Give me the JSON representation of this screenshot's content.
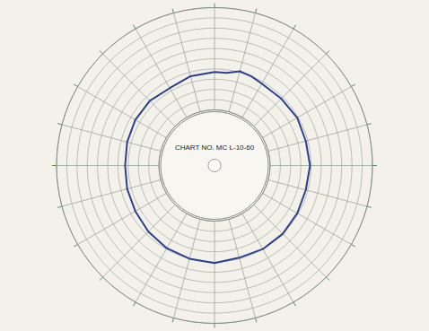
{
  "chart_data": {
    "type": "polar",
    "annotations": [
      "CHART NO. MC L-10-60"
    ],
    "x": [
      0,
      0.5,
      1,
      1.5,
      2,
      3,
      4,
      5,
      6,
      7,
      8,
      9,
      10,
      11,
      12,
      13,
      14,
      15,
      16,
      17,
      18,
      19,
      20,
      21,
      22,
      23,
      24
    ],
    "values": [
      3.7,
      3.7,
      4.1,
      4.0,
      3.8,
      3.8,
      3.9,
      3.8,
      3.9,
      3.8,
      3.9,
      4.0,
      4.0,
      3.9,
      4.1,
      4.0,
      3.9,
      3.7,
      3.5,
      3.4,
      3.3,
      3.4,
      3.5,
      3.5,
      3.3,
      3.6,
      3.7
    ],
    "color": "#2b3f92",
    "xlim": [
      0,
      24
    ],
    "xticks": [
      0,
      1,
      2,
      3,
      4,
      5,
      6,
      7,
      8,
      9,
      10,
      11,
      12,
      13,
      14,
      15,
      16,
      17,
      18,
      19,
      20,
      21,
      22,
      23,
      24
    ],
    "ylim": [
      0,
      10
    ],
    "yticks": [
      0,
      1,
      2,
      3,
      4,
      5,
      6,
      7,
      8,
      9,
      10
    ],
    "grid": true,
    "tick_labels": false
  }
}
